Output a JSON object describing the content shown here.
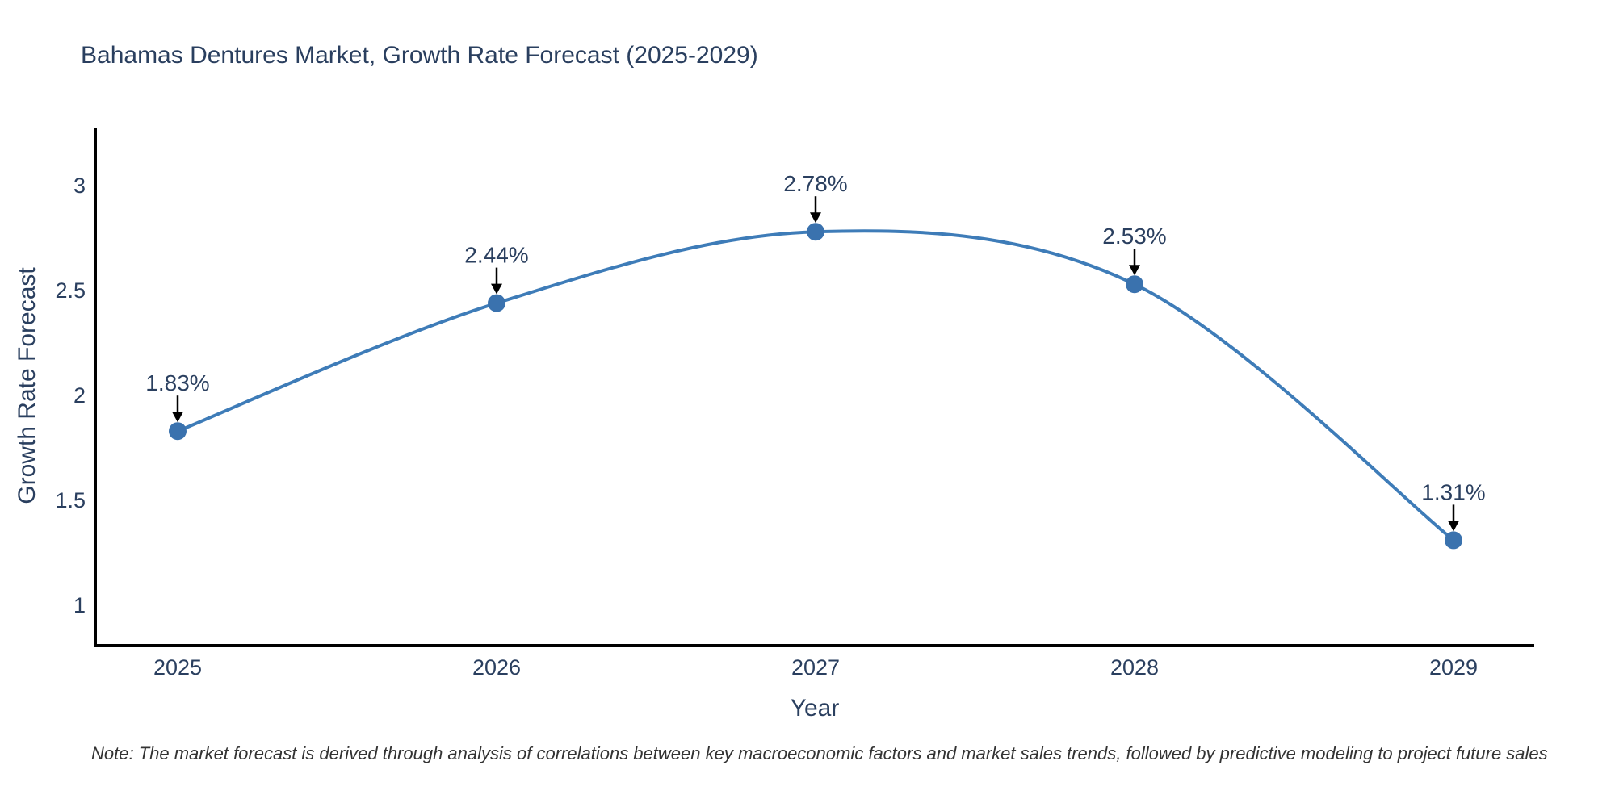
{
  "page": {
    "background": "#ffffff"
  },
  "chart_data": {
    "type": "line",
    "title": "Bahamas Dentures Market, Growth Rate Forecast (2025-2029)",
    "xlabel": "Year",
    "ylabel": "Growth Rate Forecast",
    "x": [
      2025,
      2026,
      2027,
      2028,
      2029
    ],
    "series": [
      {
        "name": "Growth Rate Forecast",
        "values": [
          1.83,
          2.44,
          2.78,
          2.53,
          1.31
        ]
      }
    ],
    "point_labels": [
      "1.83%",
      "2.44%",
      "2.78%",
      "2.53%",
      "1.31%"
    ],
    "xticks": [
      "2025",
      "2026",
      "2027",
      "2028",
      "2029"
    ],
    "yticks": [
      "1",
      "1.5",
      "2",
      "2.5",
      "3"
    ],
    "ylim": [
      0.8,
      3.3
    ],
    "grid": false,
    "legend": "none",
    "curve": "spline",
    "annotation_style": "value label with downward black arrow above each point",
    "colors": {
      "line": "#3e7cb8",
      "marker": "#3a72ae",
      "axis": "#000000",
      "text": "#2a3f5f",
      "arrow": "#000000"
    }
  },
  "footnote": {
    "text": "Note: The market forecast is derived through analysis of correlations between key macroeconomic factors and market sales trends, followed by predictive modeling to project future sales"
  }
}
